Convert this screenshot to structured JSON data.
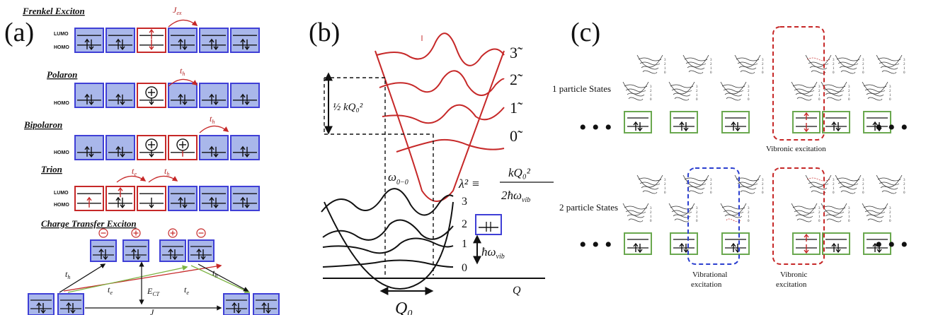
{
  "panel_a": {
    "label": "(a)",
    "sections": {
      "frenkel": "Frenkel Exciton",
      "polaron": "Polaron",
      "bipolaron": "Bipolaron",
      "trion": "Trion",
      "ct": "Charge Transfer Exciton"
    },
    "orbitals": {
      "lumo": "LUMO",
      "homo": "HOMO"
    },
    "symbols": {
      "Jex": "J",
      "Jex_sub": "ex",
      "th": "t",
      "th_sub": "h",
      "te": "t",
      "te_sub": "e",
      "ECT": "E",
      "ECT_sub": "CT",
      "Jct": "J"
    }
  },
  "panel_b": {
    "label": "(b)",
    "excited_levels": [
      "3̃",
      "2̃",
      "1̃",
      "0̃"
    ],
    "ground_levels": [
      "3",
      "2",
      "1",
      "0"
    ],
    "reorg": "½ kQ₀²",
    "omega00": "ω",
    "omega00_sub": "0−0",
    "lambda_lhs": "λ² ≡",
    "lambda_num": "kQ₀²",
    "lambda_den": "2ħω",
    "lambda_den_sub": "vib",
    "hbar_omega": "ħω",
    "hbar_omega_sub": "vib",
    "q0": "Q",
    "q0_sub": "0",
    "q_axis": "Q"
  },
  "panel_c": {
    "label": "(c)",
    "one_particle": "1 particle States",
    "two_particle": "2 particle States",
    "vibronic_excitation": "Vibronic excitation",
    "vibrational_label_1": "Vibrational",
    "vibrational_label_2": "excitation",
    "vibronic_label_1": "Vibronic",
    "vibronic_label_2": "excitation",
    "dots": "• • •"
  },
  "colors": {
    "blue": "#3f3fd6",
    "fill_blue": "#a9b7ea",
    "red": "#c62828",
    "green": "#6aa84f",
    "green_arrow": "#7cb342"
  }
}
